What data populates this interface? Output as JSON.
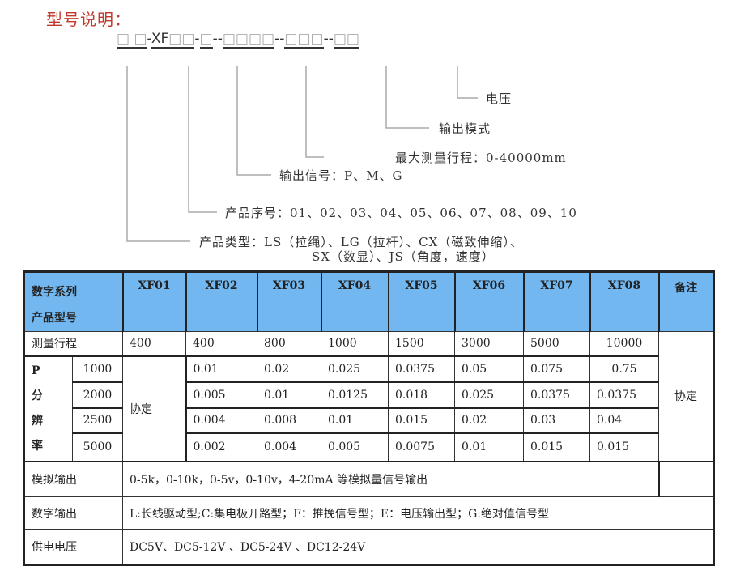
{
  "title": "型号说明：",
  "code": {
    "segments": [
      {
        "text": "□ □",
        "prefix": ""
      },
      {
        "text": "□□",
        "prefix": "XF"
      },
      {
        "text": "□",
        "prefix": ""
      },
      {
        "text": "□□□□",
        "prefix": ""
      },
      {
        "text": "□□□",
        "prefix": ""
      },
      {
        "text": "□□",
        "prefix": ""
      }
    ],
    "separators": [
      "-",
      "-",
      "--",
      "--",
      "--"
    ]
  },
  "legend": {
    "voltage": "电压",
    "output_mode": "输出模式",
    "max_range": "最大测量行程：0-40000mm",
    "output_signal": "输出信号：P、M、G",
    "serial": "产品序号：01、02、03、04、05、06、07、08、09、10",
    "type_line1": "产品类型：LS（拉绳）、LG（拉杆）、CX（磁致伸缩）、",
    "type_line2": "SX（数显）、JS（角度，速度）"
  },
  "table": {
    "header_label_1": "数字系列",
    "header_label_2": "产品型号",
    "models": [
      "XF01",
      "XF02",
      "XF03",
      "XF04",
      "XF05",
      "XF06",
      "XF07",
      "XF08"
    ],
    "remark_header": "备注",
    "range_label": "测量行程",
    "ranges": [
      "400",
      "400",
      "800",
      "1000",
      "1500",
      "3000",
      "5000",
      "10000"
    ],
    "remark_value": "协定",
    "resolution_label": [
      "P",
      "分",
      "辨",
      "率"
    ],
    "xf01_resolution": "协定",
    "resolution_rows": [
      {
        "ppr": "1000",
        "values": [
          "0.01",
          "0.02",
          "0.025",
          "0.0375",
          "0.05",
          "0.075",
          "0.75"
        ]
      },
      {
        "ppr": "2000",
        "values": [
          "0.005",
          "0.01",
          "0.0125",
          "0.018",
          "0.025",
          "0.0375",
          "0.0375"
        ]
      },
      {
        "ppr": "2500",
        "values": [
          "0.004",
          "0.008",
          "0.01",
          "0.015",
          "0.02",
          "0.03",
          "0.04"
        ]
      },
      {
        "ppr": "5000",
        "values": [
          "0.002",
          "0.004",
          "0.005",
          "0.0075",
          "0.01",
          "0.015",
          "0.015"
        ]
      }
    ],
    "analog_label": "模拟输出",
    "analog_value": "0-5k，0-10k，0-5v，0-10v，4-20mA 等模拟量信号输出",
    "digital_label": "数字输出",
    "digital_value": "L:长线驱动型;C:集电极开路型；F：推挽信号型；E：电压输出型；G:绝对值信号型",
    "power_label": "供电电压",
    "power_value": "DC5V、DC5-12V 、DC5-24V 、DC12-24V"
  }
}
